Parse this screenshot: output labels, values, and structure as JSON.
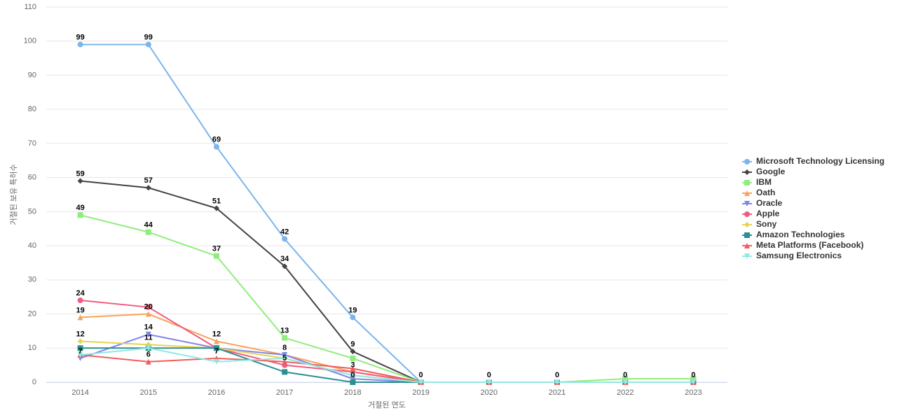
{
  "chart_data": {
    "type": "line",
    "x_label": "거절된 연도",
    "y_label": "거절된 보유 특허수",
    "categories": [
      "2014",
      "2015",
      "2016",
      "2017",
      "2018",
      "2019",
      "2020",
      "2021",
      "2022",
      "2023"
    ],
    "ylim": [
      0,
      110
    ],
    "yticks": [
      0,
      10,
      20,
      30,
      40,
      50,
      60,
      70,
      80,
      90,
      100,
      110
    ],
    "grid": true,
    "legend": "right",
    "series": [
      {
        "name": "Microsoft Technology Licensing",
        "color": "#7cb5ec",
        "marker": "circle",
        "values": [
          99,
          99,
          69,
          42,
          19,
          0,
          0,
          0,
          0,
          0
        ]
      },
      {
        "name": "Google",
        "color": "#434348",
        "marker": "diamond",
        "values": [
          59,
          57,
          51,
          34,
          9,
          0,
          0,
          0,
          0,
          0
        ]
      },
      {
        "name": "IBM",
        "color": "#90ed7d",
        "marker": "square",
        "values": [
          49,
          44,
          37,
          13,
          7,
          0,
          0,
          0,
          1,
          1
        ]
      },
      {
        "name": "Oath",
        "color": "#f7a35c",
        "marker": "triangle",
        "values": [
          19,
          20,
          12,
          8,
          3,
          0,
          0,
          0,
          0,
          0
        ]
      },
      {
        "name": "Oracle",
        "color": "#8085e9",
        "marker": "triangle-down",
        "values": [
          7,
          14,
          10,
          8,
          1,
          0,
          0,
          0,
          0,
          0
        ]
      },
      {
        "name": "Apple",
        "color": "#f15c80",
        "marker": "circle",
        "values": [
          24,
          22,
          10,
          5,
          3,
          0,
          0,
          0,
          0,
          0
        ]
      },
      {
        "name": "Sony",
        "color": "#e4d354",
        "marker": "diamond",
        "values": [
          12,
          11,
          10,
          7,
          2,
          0,
          0,
          0,
          0,
          0
        ]
      },
      {
        "name": "Amazon Technologies",
        "color": "#2b908f",
        "marker": "square",
        "values": [
          10,
          10,
          10,
          3,
          0,
          0,
          0,
          0,
          0,
          0
        ]
      },
      {
        "name": "Meta Platforms (Facebook)",
        "color": "#f45b5b",
        "marker": "triangle",
        "values": [
          8,
          6,
          7,
          6,
          4,
          0,
          0,
          0,
          0,
          0
        ]
      },
      {
        "name": "Samsung Electronics",
        "color": "#91e8e1",
        "marker": "triangle-down",
        "values": [
          8,
          10,
          6,
          7,
          2,
          0,
          0,
          0,
          0,
          0
        ]
      }
    ]
  }
}
